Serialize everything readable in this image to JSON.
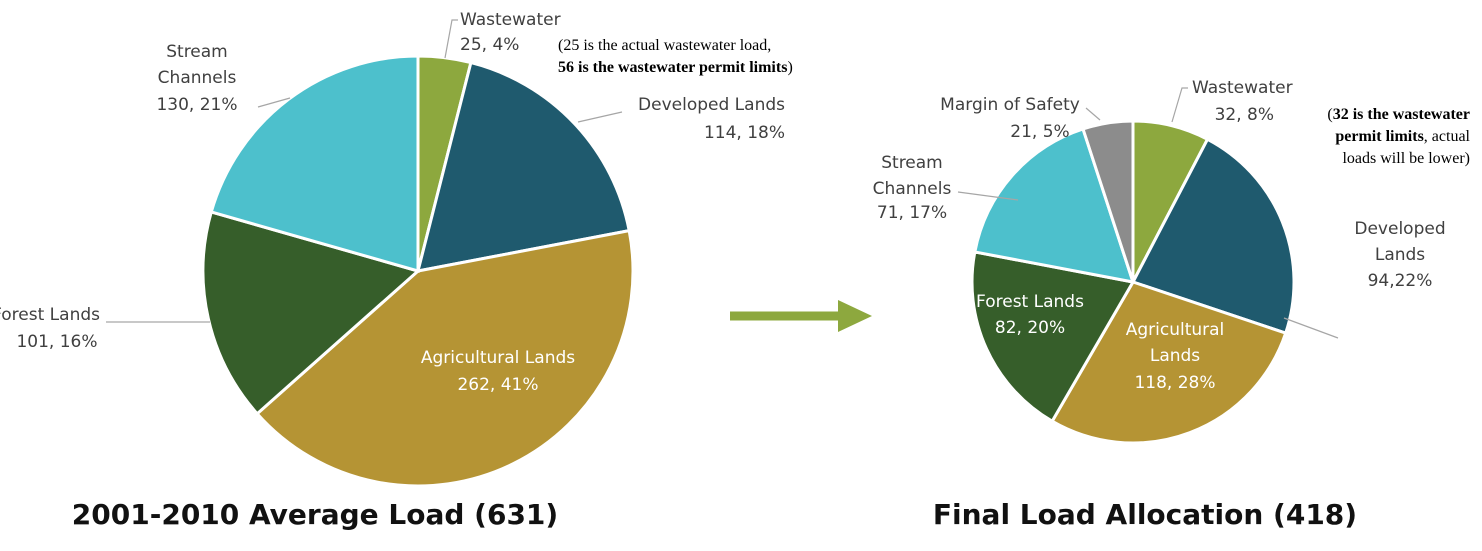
{
  "chart_data": [
    {
      "type": "pie",
      "title": "2001-2010 Average Load (631)",
      "categories": [
        "Wastewater",
        "Developed Lands",
        "Agricultural Lands",
        "Forest Lands",
        "Stream\nChannels"
      ],
      "values": [
        25,
        114,
        262,
        101,
        130
      ],
      "value_labels": [
        "25, 4%",
        "114, 18%",
        "262, 41%",
        "101, 16%",
        "130, 21%"
      ],
      "colors": [
        "#8da83e",
        "#1f5a6e",
        "#b59434",
        "#365e2a",
        "#4dc0cc"
      ],
      "annotation": [
        [
          {
            "text": "(25 is the actual wastewater load,",
            "bold": false
          }
        ],
        [
          {
            "text": "56 is the wastewater permit limits",
            "bold": true
          },
          {
            "text": ")",
            "bold": false
          }
        ]
      ]
    },
    {
      "type": "pie",
      "title": "Final Load Allocation (418)",
      "categories": [
        "Wastewater",
        "Developed\nLands",
        "Agricultural\nLands",
        "Forest Lands",
        "Stream\nChannels",
        "Margin of Safety"
      ],
      "values": [
        32,
        94,
        118,
        82,
        71,
        21
      ],
      "value_labels": [
        "32, 8%",
        "94,22%",
        "118, 28%",
        "82, 20%",
        "71, 17%",
        "21, 5%"
      ],
      "colors": [
        "#8da83e",
        "#1f5a6e",
        "#b59434",
        "#365e2a",
        "#4dc0cc",
        "#8c8c8c"
      ],
      "annotation": [
        [
          {
            "text": "(",
            "bold": false
          },
          {
            "text": "32 is the wastewater",
            "bold": true
          }
        ],
        [
          {
            "text": "permit limits",
            "bold": true
          },
          {
            "text": ", actual",
            "bold": false
          }
        ],
        [
          {
            "text": "loads will be lower)",
            "bold": false
          }
        ]
      ]
    }
  ]
}
